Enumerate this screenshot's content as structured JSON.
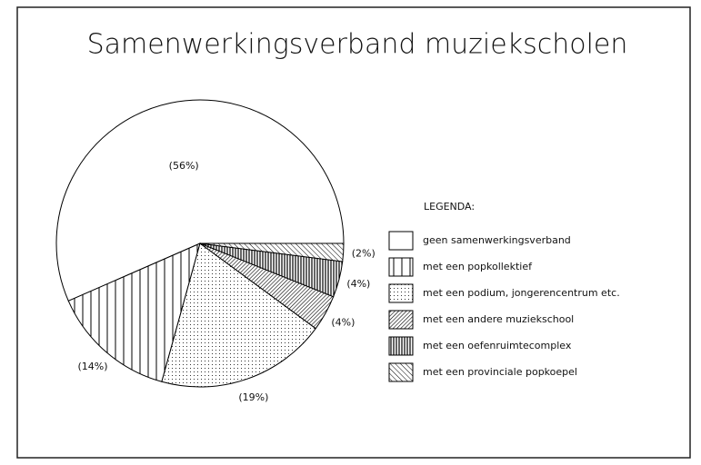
{
  "chart_data": {
    "type": "pie",
    "title": "Samenwerkingsverband muziekscholen",
    "legend_title": "LEGENDA:",
    "categories": [
      "geen samenwerkingsverband",
      "met een popkollektief",
      "met een podium, jongerencentrum etc.",
      "met een andere muziekschool",
      "met een oefenruimtecomplex",
      "met een provinciale popkoepel"
    ],
    "values": [
      56,
      14,
      19,
      4,
      4,
      2
    ],
    "value_labels": [
      "(56%)",
      "(14%)",
      "(19%)",
      "(4%)",
      "(4%)",
      "(2%)"
    ]
  }
}
